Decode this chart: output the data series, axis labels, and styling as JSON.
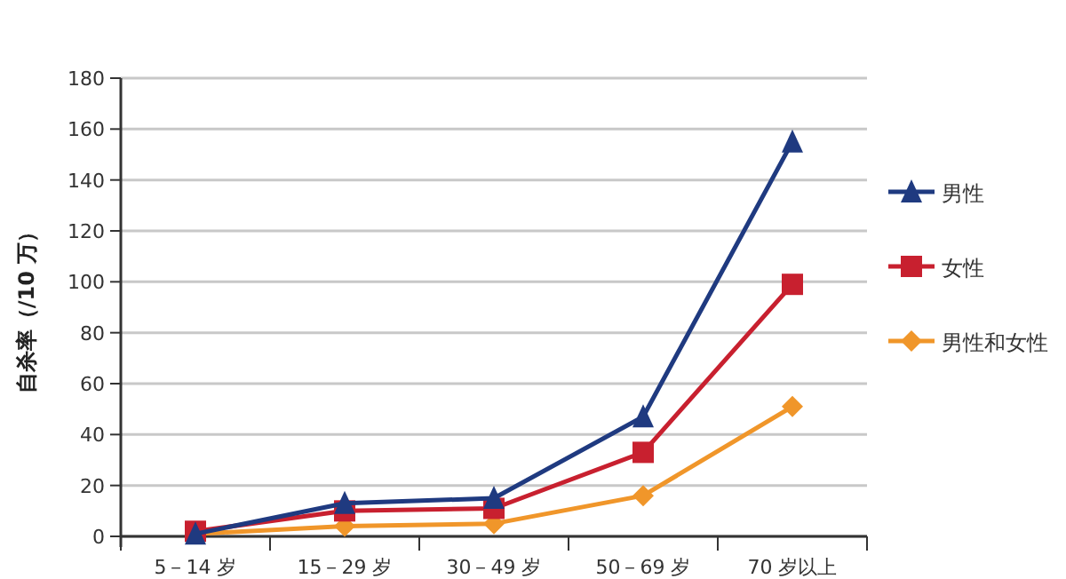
{
  "chart_data": {
    "type": "line",
    "ylabel": "自杀率（/10 万）",
    "categories": [
      "5－14 岁",
      "15－29 岁",
      "30－49 岁",
      "50－69 岁",
      "70 岁以上"
    ],
    "series": [
      {
        "name": "男性",
        "color": "#1f3a80",
        "marker": "triangle",
        "values": [
          1,
          13,
          15,
          47,
          155
        ]
      },
      {
        "name": "女性",
        "color": "#c8202f",
        "marker": "square",
        "values": [
          2,
          10,
          11,
          33,
          99
        ]
      },
      {
        "name": "男性和女性",
        "color": "#f0962a",
        "marker": "diamond",
        "values": [
          1,
          4,
          5,
          16,
          51
        ]
      }
    ],
    "ylim": [
      0,
      180
    ],
    "yticks": [
      0,
      20,
      40,
      60,
      80,
      100,
      120,
      140,
      160,
      180
    ],
    "grid": "y",
    "legend": "right"
  }
}
